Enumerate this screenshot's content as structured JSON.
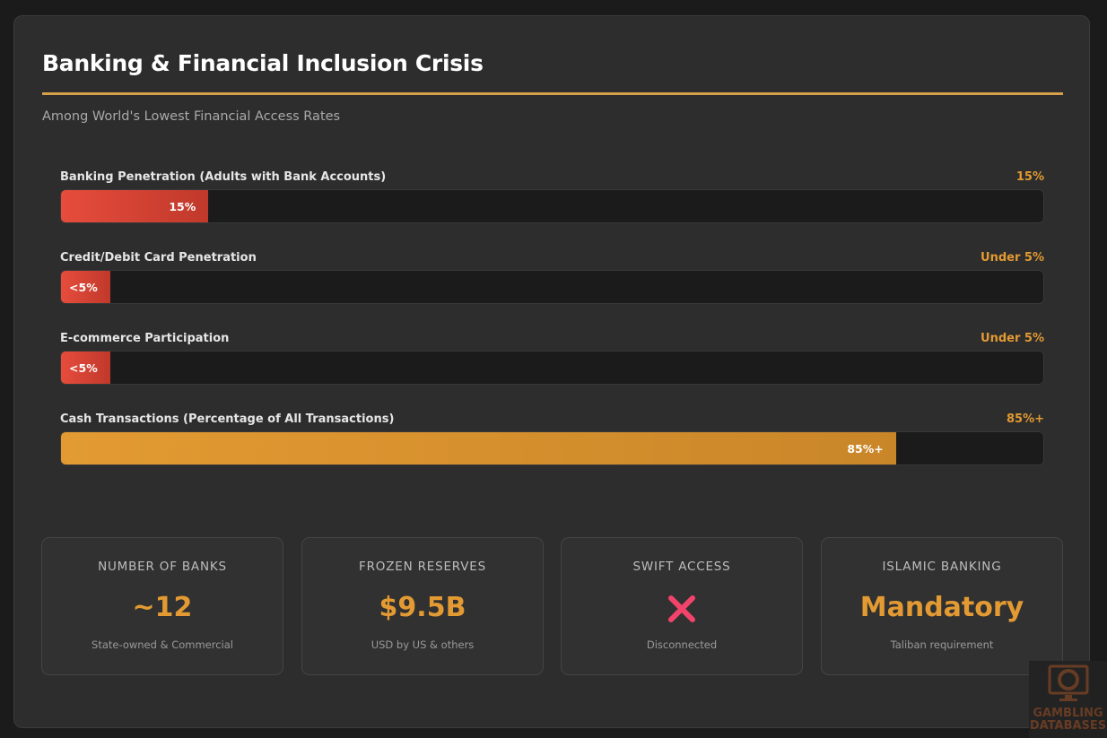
{
  "header": {
    "title": "Banking & Financial Inclusion Crisis",
    "subtitle": "Among World's Lowest Financial Access Rates"
  },
  "bars": [
    {
      "label": "Banking Penetration (Adults with Bank Accounts)",
      "value_text": "15%",
      "fill_text": "15%",
      "percent": 15,
      "color": "red"
    },
    {
      "label": "Credit/Debit Card Penetration",
      "value_text": "Under 5%",
      "fill_text": "<5%",
      "percent": 5,
      "color": "red"
    },
    {
      "label": "E-commerce Participation",
      "value_text": "Under 5%",
      "fill_text": "<5%",
      "percent": 5,
      "color": "red"
    },
    {
      "label": "Cash Transactions (Percentage of All Transactions)",
      "value_text": "85%+",
      "fill_text": "85%+",
      "percent": 85,
      "color": "gold"
    }
  ],
  "stats": [
    {
      "label": "NUMBER OF BANKS",
      "value": "~12",
      "desc": "State-owned & Commercial"
    },
    {
      "label": "FROZEN RESERVES",
      "value": "$9.5B",
      "desc": "USD by US & others"
    },
    {
      "label": "SWIFT ACCESS",
      "value": "",
      "icon": "cross-mark-icon",
      "desc": "Disconnected"
    },
    {
      "label": "ISLAMIC BANKING",
      "value": "Mandatory",
      "desc": "Taliban requirement"
    }
  ],
  "watermark": {
    "text": "GAMBLING DATABASES"
  },
  "colors": {
    "accent": "#e39a32",
    "red": "#e74c3c",
    "cross": "#f2436b"
  }
}
